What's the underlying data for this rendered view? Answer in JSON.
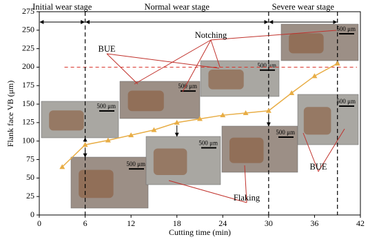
{
  "chart_data": {
    "type": "line",
    "x_label": "Cutting time (min)",
    "y_label": "Flank face VB (μm)",
    "x": [
      3,
      6,
      9,
      12,
      15,
      18,
      21,
      24,
      27,
      30,
      33,
      36,
      39
    ],
    "values": [
      65,
      95,
      101,
      108,
      115,
      125,
      130,
      135,
      138,
      141,
      165,
      188,
      205
    ],
    "color": "#e8ad45",
    "marker": "triangle",
    "xlim": [
      0,
      42
    ],
    "xticks": [
      0,
      6,
      12,
      18,
      24,
      30,
      36,
      42
    ],
    "ylim": [
      0,
      275
    ],
    "yticks": [
      0,
      25,
      50,
      75,
      100,
      125,
      150,
      175,
      200,
      225,
      250,
      275
    ],
    "vlines": [
      6,
      30,
      39
    ],
    "hline": 200,
    "hline_color": "#d9342b",
    "stages": [
      "Initial wear stage",
      "Normal wear stage",
      "Severe wear stage"
    ],
    "annotations": [
      "Notching",
      "BUE",
      "BUE",
      "Flaking"
    ],
    "scale_bars": [
      "500 μm",
      "500 μm",
      "500 μm",
      "500 μm",
      "500 μm",
      "500 μm",
      "500 μm",
      "500 μm"
    ]
  }
}
